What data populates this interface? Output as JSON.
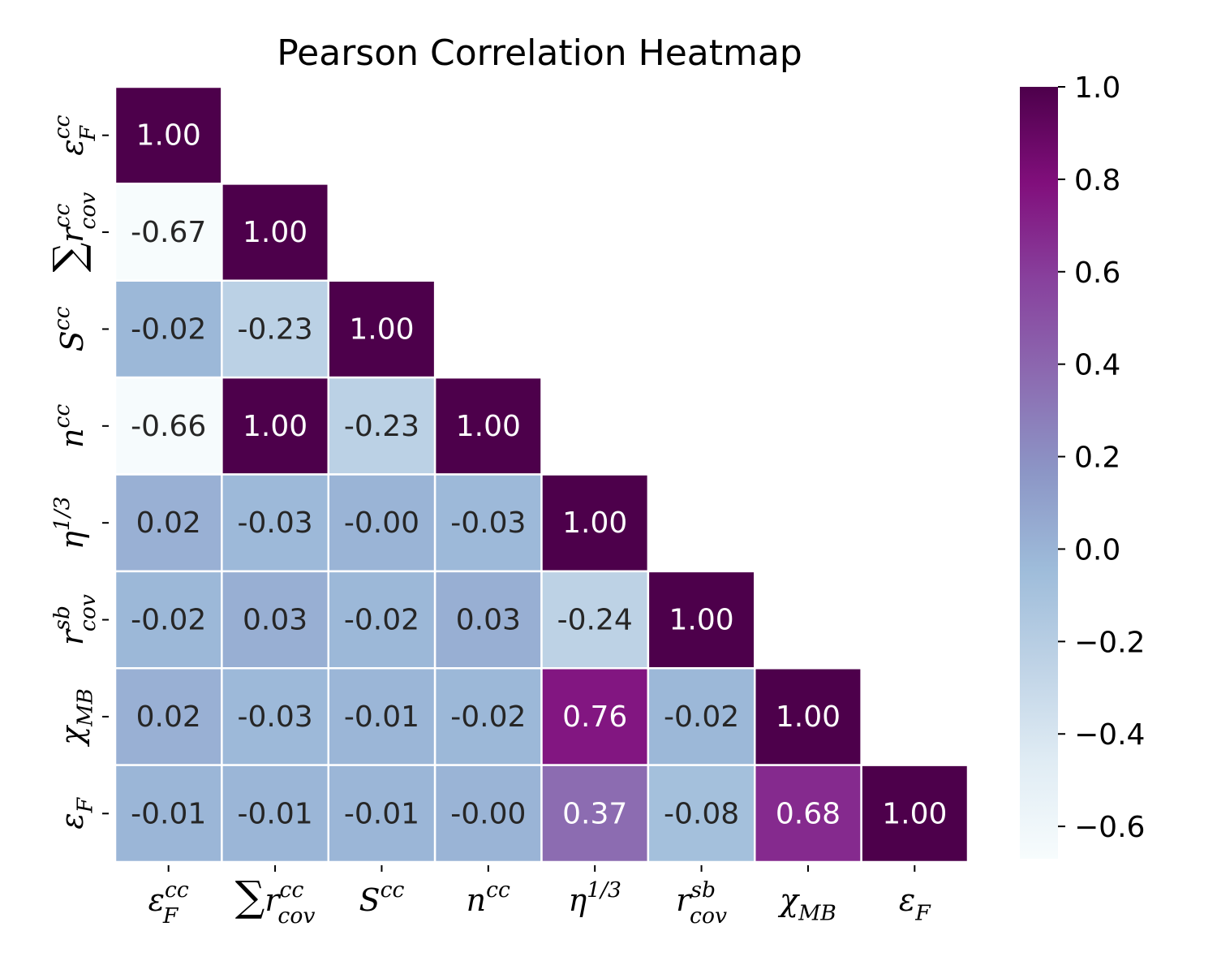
{
  "chart_data": {
    "type": "heatmap",
    "title": "Pearson Correlation Heatmap",
    "mask": "lower-triangle",
    "labels": [
      {
        "base": "ε",
        "sub": "F",
        "sup": "cc"
      },
      {
        "pre": "∑",
        "base": "r",
        "sub": "cov",
        "sup": "cc"
      },
      {
        "base": "S",
        "sub": "",
        "sup": "cc"
      },
      {
        "base": "n",
        "sub": "",
        "sup": "cc"
      },
      {
        "base": "η",
        "sub": "",
        "sup": "1/3"
      },
      {
        "base": "r",
        "sub": "cov",
        "sup": "sb"
      },
      {
        "base": "χ",
        "sub": "MB",
        "sup": ""
      },
      {
        "base": "ε",
        "sub": "F",
        "sup": ""
      }
    ],
    "matrix": [
      [
        1.0
      ],
      [
        -0.67,
        1.0
      ],
      [
        -0.02,
        -0.23,
        1.0
      ],
      [
        -0.66,
        1.0,
        -0.23,
        1.0
      ],
      [
        0.02,
        -0.03,
        -0.0,
        -0.03,
        1.0
      ],
      [
        -0.02,
        0.03,
        -0.02,
        0.03,
        -0.24,
        1.0
      ],
      [
        0.02,
        -0.03,
        -0.01,
        -0.02,
        0.76,
        -0.02,
        1.0
      ],
      [
        -0.01,
        -0.01,
        -0.01,
        -0.0,
        0.37,
        -0.08,
        0.68,
        1.0
      ]
    ],
    "value_labels": [
      [
        "1.00"
      ],
      [
        "-0.67",
        "1.00"
      ],
      [
        "-0.02",
        "-0.23",
        "1.00"
      ],
      [
        "-0.66",
        "1.00",
        "-0.23",
        "1.00"
      ],
      [
        "0.02",
        "-0.03",
        "-0.00",
        "-0.03",
        "1.00"
      ],
      [
        "-0.02",
        "0.03",
        "-0.02",
        "0.03",
        "-0.24",
        "1.00"
      ],
      [
        "0.02",
        "-0.03",
        "-0.01",
        "-0.02",
        "0.76",
        "-0.02",
        "1.00"
      ],
      [
        "-0.01",
        "-0.01",
        "-0.01",
        "-0.00",
        "0.37",
        "-0.08",
        "0.68",
        "1.00"
      ]
    ],
    "colormap": "BuPu",
    "colorbar": {
      "vmin": -0.67,
      "vmax": 1.0,
      "ticks": [
        1.0,
        0.8,
        0.6,
        0.4,
        0.2,
        0.0,
        -0.2,
        -0.4,
        -0.6
      ],
      "tick_labels": [
        "1.0",
        "0.8",
        "0.6",
        "0.4",
        "0.2",
        "0.0",
        "−0.2",
        "−0.4",
        "−0.6"
      ]
    },
    "colors": {
      "cmap_stops": [
        "#f7fcfd",
        "#e0ecf4",
        "#bfd3e6",
        "#9ebcda",
        "#8c96c6",
        "#8c6bb1",
        "#88419d",
        "#810f7c",
        "#4d004b"
      ],
      "text_dark": "#262626",
      "text_light": "#ffffff",
      "grid_line": "#ffffff"
    }
  }
}
